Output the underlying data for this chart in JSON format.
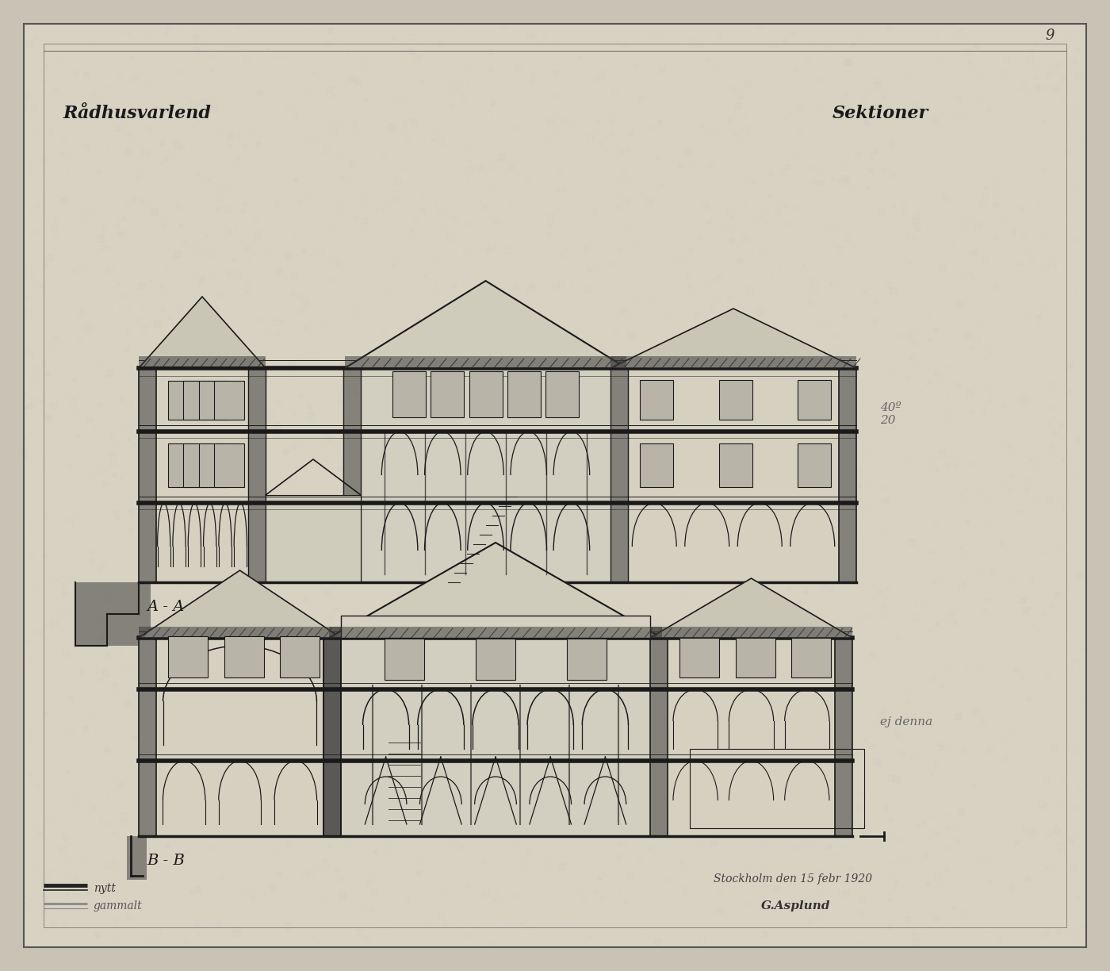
{
  "bg_color": "#c8c3b5",
  "paper_color": "#d8d2c2",
  "line_color": "#1a1a1a",
  "hatch_color": "#2a2a2a",
  "fill_color": "#cdc8b8",
  "window_fill": "#b8b4a8",
  "title_left": "Rådhusvarlend",
  "title_right": "Sektioner",
  "label_aa": "A - A",
  "label_bb": "B - B",
  "page_num": "9",
  "note_right_top": "40º\n20",
  "note_right_mid": "ej denna",
  "date_text": "Stockholm den 15 febr 1920",
  "sig_text": "G.Asplund",
  "legend_new": "nytt",
  "legend_old": "gammalt"
}
